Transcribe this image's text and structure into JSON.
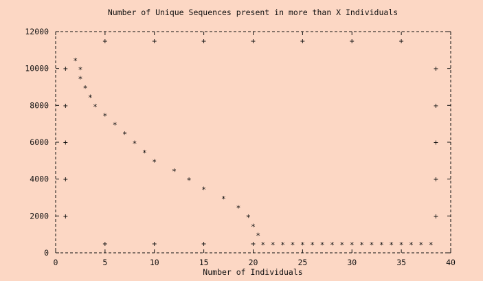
{
  "chart_data": {
    "type": "scatter",
    "title": "Number of Unique Sequences present in more than X Individuals",
    "xlabel": "Number of Individuals",
    "ylabel": "",
    "xlim": [
      0,
      40
    ],
    "ylim": [
      0,
      12000
    ],
    "x_ticks": [
      "0",
      "5",
      "10",
      "15",
      "20",
      "25",
      "30",
      "35",
      "40"
    ],
    "y_ticks": [
      "0",
      "2000",
      "4000",
      "6000",
      "8000",
      "10000",
      "12000"
    ],
    "grid": false,
    "legend": "none",
    "marker": "*",
    "points": [
      [
        2,
        10500
      ],
      [
        2.5,
        10000
      ],
      [
        2.5,
        9500
      ],
      [
        3,
        9000
      ],
      [
        3.5,
        8500
      ],
      [
        4,
        8000
      ],
      [
        5,
        7500
      ],
      [
        6,
        7000
      ],
      [
        7,
        6500
      ],
      [
        8,
        6000
      ],
      [
        9,
        5500
      ],
      [
        10,
        5000
      ],
      [
        12,
        4500
      ],
      [
        13.5,
        4000
      ],
      [
        15,
        3500
      ],
      [
        17,
        3000
      ],
      [
        18.5,
        2500
      ],
      [
        19.5,
        2000
      ],
      [
        20,
        1500
      ],
      [
        20.5,
        1000
      ],
      [
        21,
        500
      ],
      [
        22,
        500
      ],
      [
        23,
        500
      ],
      [
        24,
        500
      ],
      [
        25,
        500
      ],
      [
        26,
        500
      ],
      [
        27,
        500
      ],
      [
        28,
        500
      ],
      [
        29,
        500
      ],
      [
        30,
        500
      ],
      [
        31,
        500
      ],
      [
        32,
        500
      ],
      [
        33,
        500
      ],
      [
        34,
        500
      ],
      [
        35,
        500
      ],
      [
        36,
        500
      ],
      [
        37,
        500
      ],
      [
        38,
        500
      ]
    ],
    "crosshair_marks": [
      [
        5,
        11500
      ],
      [
        10,
        11500
      ],
      [
        15,
        11500
      ],
      [
        20,
        11500
      ],
      [
        25,
        11500
      ],
      [
        30,
        11500
      ],
      [
        35,
        11500
      ],
      [
        1,
        10000
      ],
      [
        1,
        8000
      ],
      [
        1,
        6000
      ],
      [
        1,
        4000
      ],
      [
        1,
        2000
      ],
      [
        5,
        500
      ],
      [
        10,
        500
      ],
      [
        15,
        500
      ],
      [
        20,
        500
      ]
    ],
    "colors": {
      "background": "#fcd7c4",
      "ink": "#111111"
    }
  }
}
